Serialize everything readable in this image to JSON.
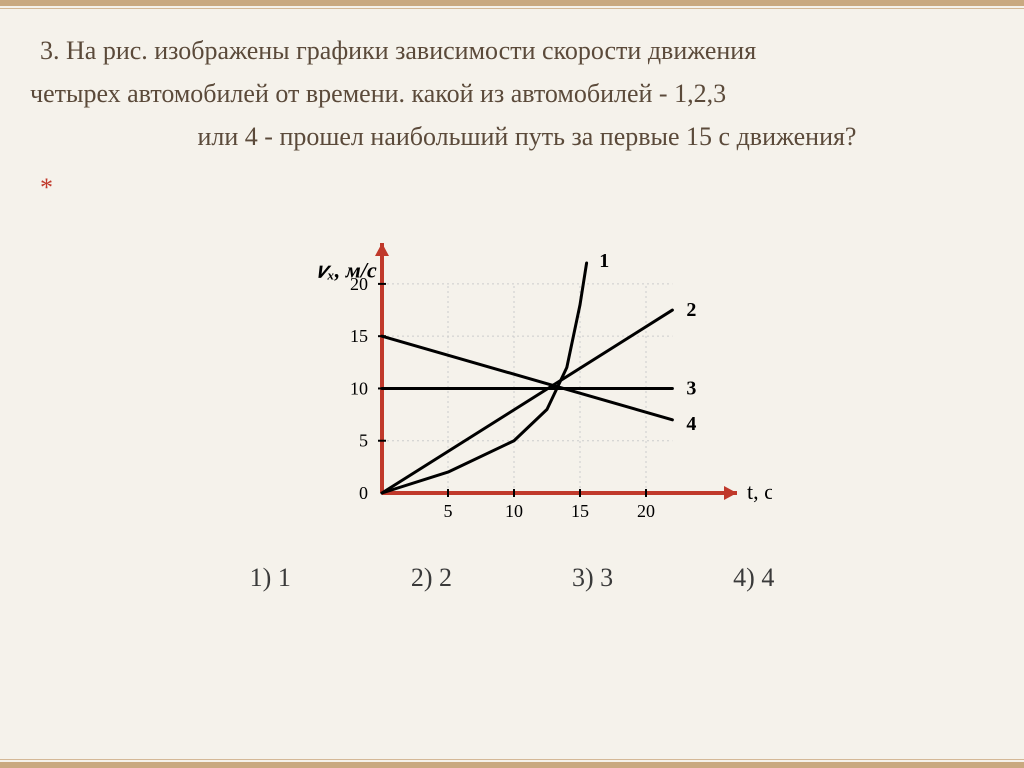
{
  "question": {
    "line1": "3. На рис. изображены графики зависимости скорости движения",
    "line2": "четырех автомобилей от времени. какой из автомобилей  -  1,2,3",
    "line3": "или 4  -  прошел наибольший путь за первые  15 с  движения?",
    "asterisk": "*"
  },
  "chart": {
    "y_axis_label": "𝑣ₓ, м/с",
    "x_axis_label": "t, с",
    "x_range": [
      0,
      25
    ],
    "y_range": [
      0,
      22
    ],
    "x_ticks": [
      5,
      10,
      15,
      20
    ],
    "y_ticks": [
      5,
      10,
      15,
      20
    ],
    "origin_label": "0",
    "grid_color": "#cccccc",
    "axis_color": "#c0392b",
    "line_color": "#000000",
    "line_width": 3,
    "background": "#ffffff",
    "series_labels": {
      "s1": "1",
      "s2": "2",
      "s3": "3",
      "s4": "4"
    },
    "series": {
      "s1": [
        [
          0,
          0
        ],
        [
          5,
          2
        ],
        [
          10,
          5
        ],
        [
          12.5,
          8
        ],
        [
          14,
          12
        ],
        [
          15,
          18
        ],
        [
          15.5,
          22
        ]
      ],
      "s2": [
        [
          0,
          0
        ],
        [
          22,
          17.5
        ]
      ],
      "s3": [
        [
          0,
          10
        ],
        [
          22,
          10
        ]
      ],
      "s4": [
        [
          0,
          15
        ],
        [
          22,
          7
        ]
      ]
    }
  },
  "answers": {
    "a1": "1)   1",
    "a2": "2)   2",
    "a3": "3)   3",
    "a4": "4)   4"
  }
}
